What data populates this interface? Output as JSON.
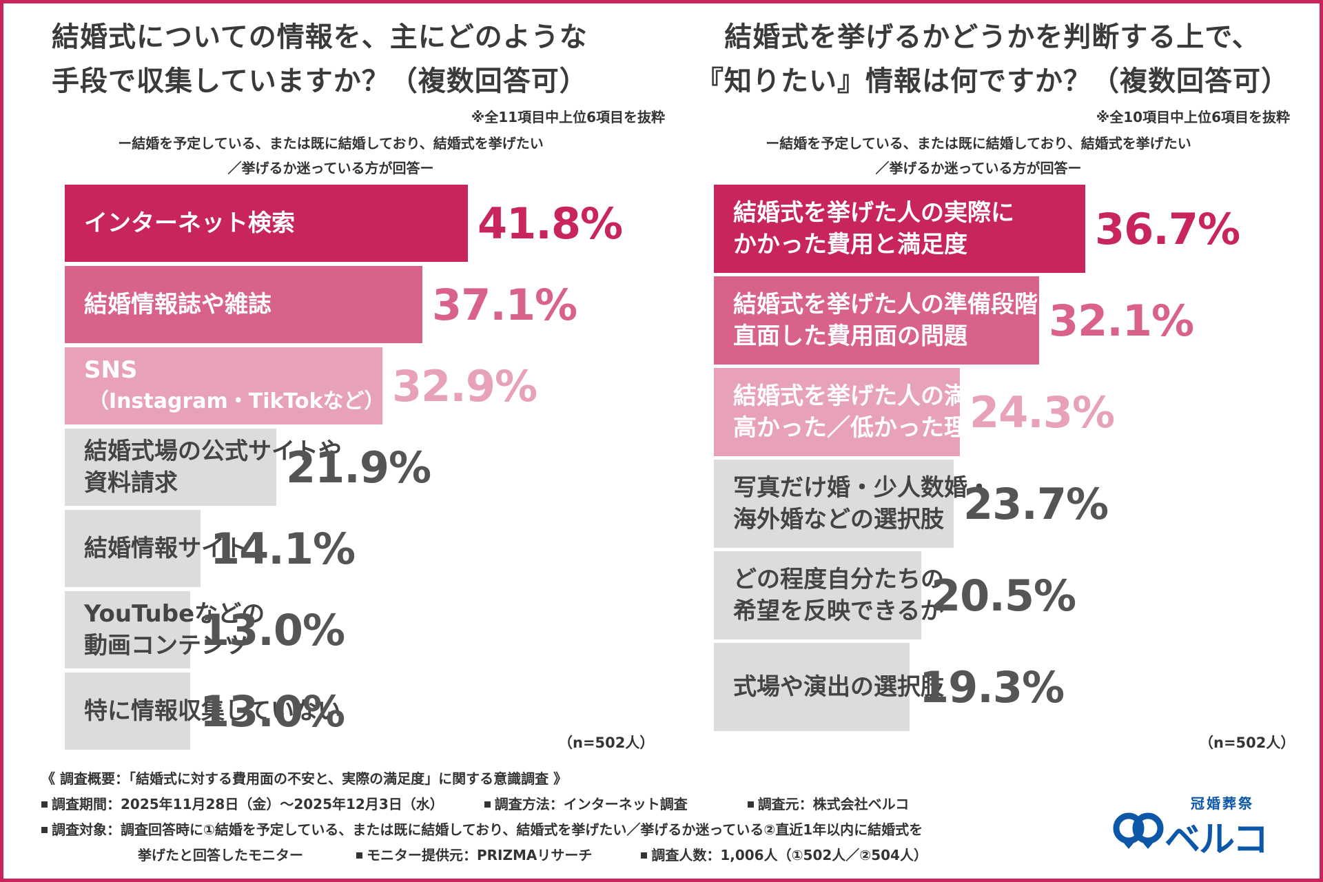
{
  "colors": {
    "frame": "#c8265a",
    "rank1": "#c8265a",
    "rank2": "#d96388",
    "rank3": "#e8a2b8",
    "rest": "#dcdcdc",
    "value_rest": "#555555",
    "logo": "#0c57a8"
  },
  "left": {
    "title_line1": "結婚式についての情報を、主にどのような",
    "title_line2": "手段で収集していますか？（複数回答可）",
    "extract_note": "※全11項目中上位6項目を抜粋",
    "respondents_line1": "ー結婚を予定している、または既に結婚しており、結婚式を挙げたい",
    "respondents_line2": "／挙げるか迷っている方が回答ー",
    "n_note": "（n=502人）"
  },
  "right": {
    "title_line1": "結婚式を挙げるかどうかを判断する上で、",
    "title_line2": "『知りたい』情報は何ですか？（複数回答可）",
    "extract_note": "※全10項目中上位6項目を抜粋",
    "respondents_line1": "ー結婚を予定している、または既に結婚しており、結婚式を挙げたい",
    "respondents_line2": "／挙げるか迷っている方が回答ー",
    "n_note": "（n=502人）"
  },
  "chart_data": [
    {
      "type": "bar",
      "orientation": "horizontal",
      "title": "結婚式についての情報を、主にどのような手段で収集していますか？（複数回答可）",
      "unit": "%",
      "categories": [
        [
          "インターネット検索"
        ],
        [
          "結婚情報誌や雑誌"
        ],
        [
          "SNS",
          "（Instagram・TikTokなど）"
        ],
        [
          "結婚式場の公式サイトや",
          "資料請求"
        ],
        [
          "結婚情報サイト"
        ],
        [
          "YouTubeなどの",
          "動画コンテンツ"
        ],
        [
          "特に情報収集していない"
        ]
      ],
      "values": [
        41.8,
        37.1,
        32.9,
        21.9,
        14.1,
        13.0,
        13.0
      ],
      "value_labels": [
        "41.8%",
        "37.1%",
        "32.9%",
        "21.9%",
        "14.1%",
        "13.0%",
        "13.0%"
      ],
      "xlim": [
        0,
        50
      ]
    },
    {
      "type": "bar",
      "orientation": "horizontal",
      "title": "結婚式を挙げるかどうかを判断する上で、『知りたい』情報は何ですか？（複数回答可）",
      "unit": "%",
      "categories": [
        [
          "結婚式を挙げた人の実際に",
          "かかった費用と満足度"
        ],
        [
          "結婚式を挙げた人の準備段階で",
          "直面した費用面の問題"
        ],
        [
          "結婚式を挙げた人の満足度が",
          "高かった／低かった理由"
        ],
        [
          "写真だけ婚・少人数婚・",
          "海外婚などの選択肢"
        ],
        [
          "どの程度自分たちの",
          "希望を反映できるか"
        ],
        [
          "式場や演出の選択肢"
        ]
      ],
      "values": [
        36.7,
        32.1,
        24.3,
        23.7,
        20.5,
        19.3
      ],
      "value_labels": [
        "36.7%",
        "32.1%",
        "24.3%",
        "23.7%",
        "20.5%",
        "19.3%"
      ],
      "xlim": [
        0,
        40
      ]
    }
  ],
  "footer": {
    "overview": "《 調査概要：「結婚式に対する費用面の不安と、実際の満足度」に関する意識調査 》",
    "period": "調査期間：2025年11月28日（金）～2025年12月3日（水）",
    "method": "調査方法：インターネット調査",
    "source": "調査元：株式会社ベルコ",
    "target_line1": "調査対象：調査回答時に①結婚を予定している、または既に結婚しており、結婚式を挙げたい／挙げるか迷っている②直近1年以内に結婚式を",
    "target_line2": "挙げたと回答したモニター",
    "provider": "モニター提供元：PRIZMAリサーチ",
    "count": "調査人数：1,006人（①502人／②504人）"
  },
  "logo": {
    "tagline": "冠婚葬祭",
    "name": "ベルコ"
  }
}
